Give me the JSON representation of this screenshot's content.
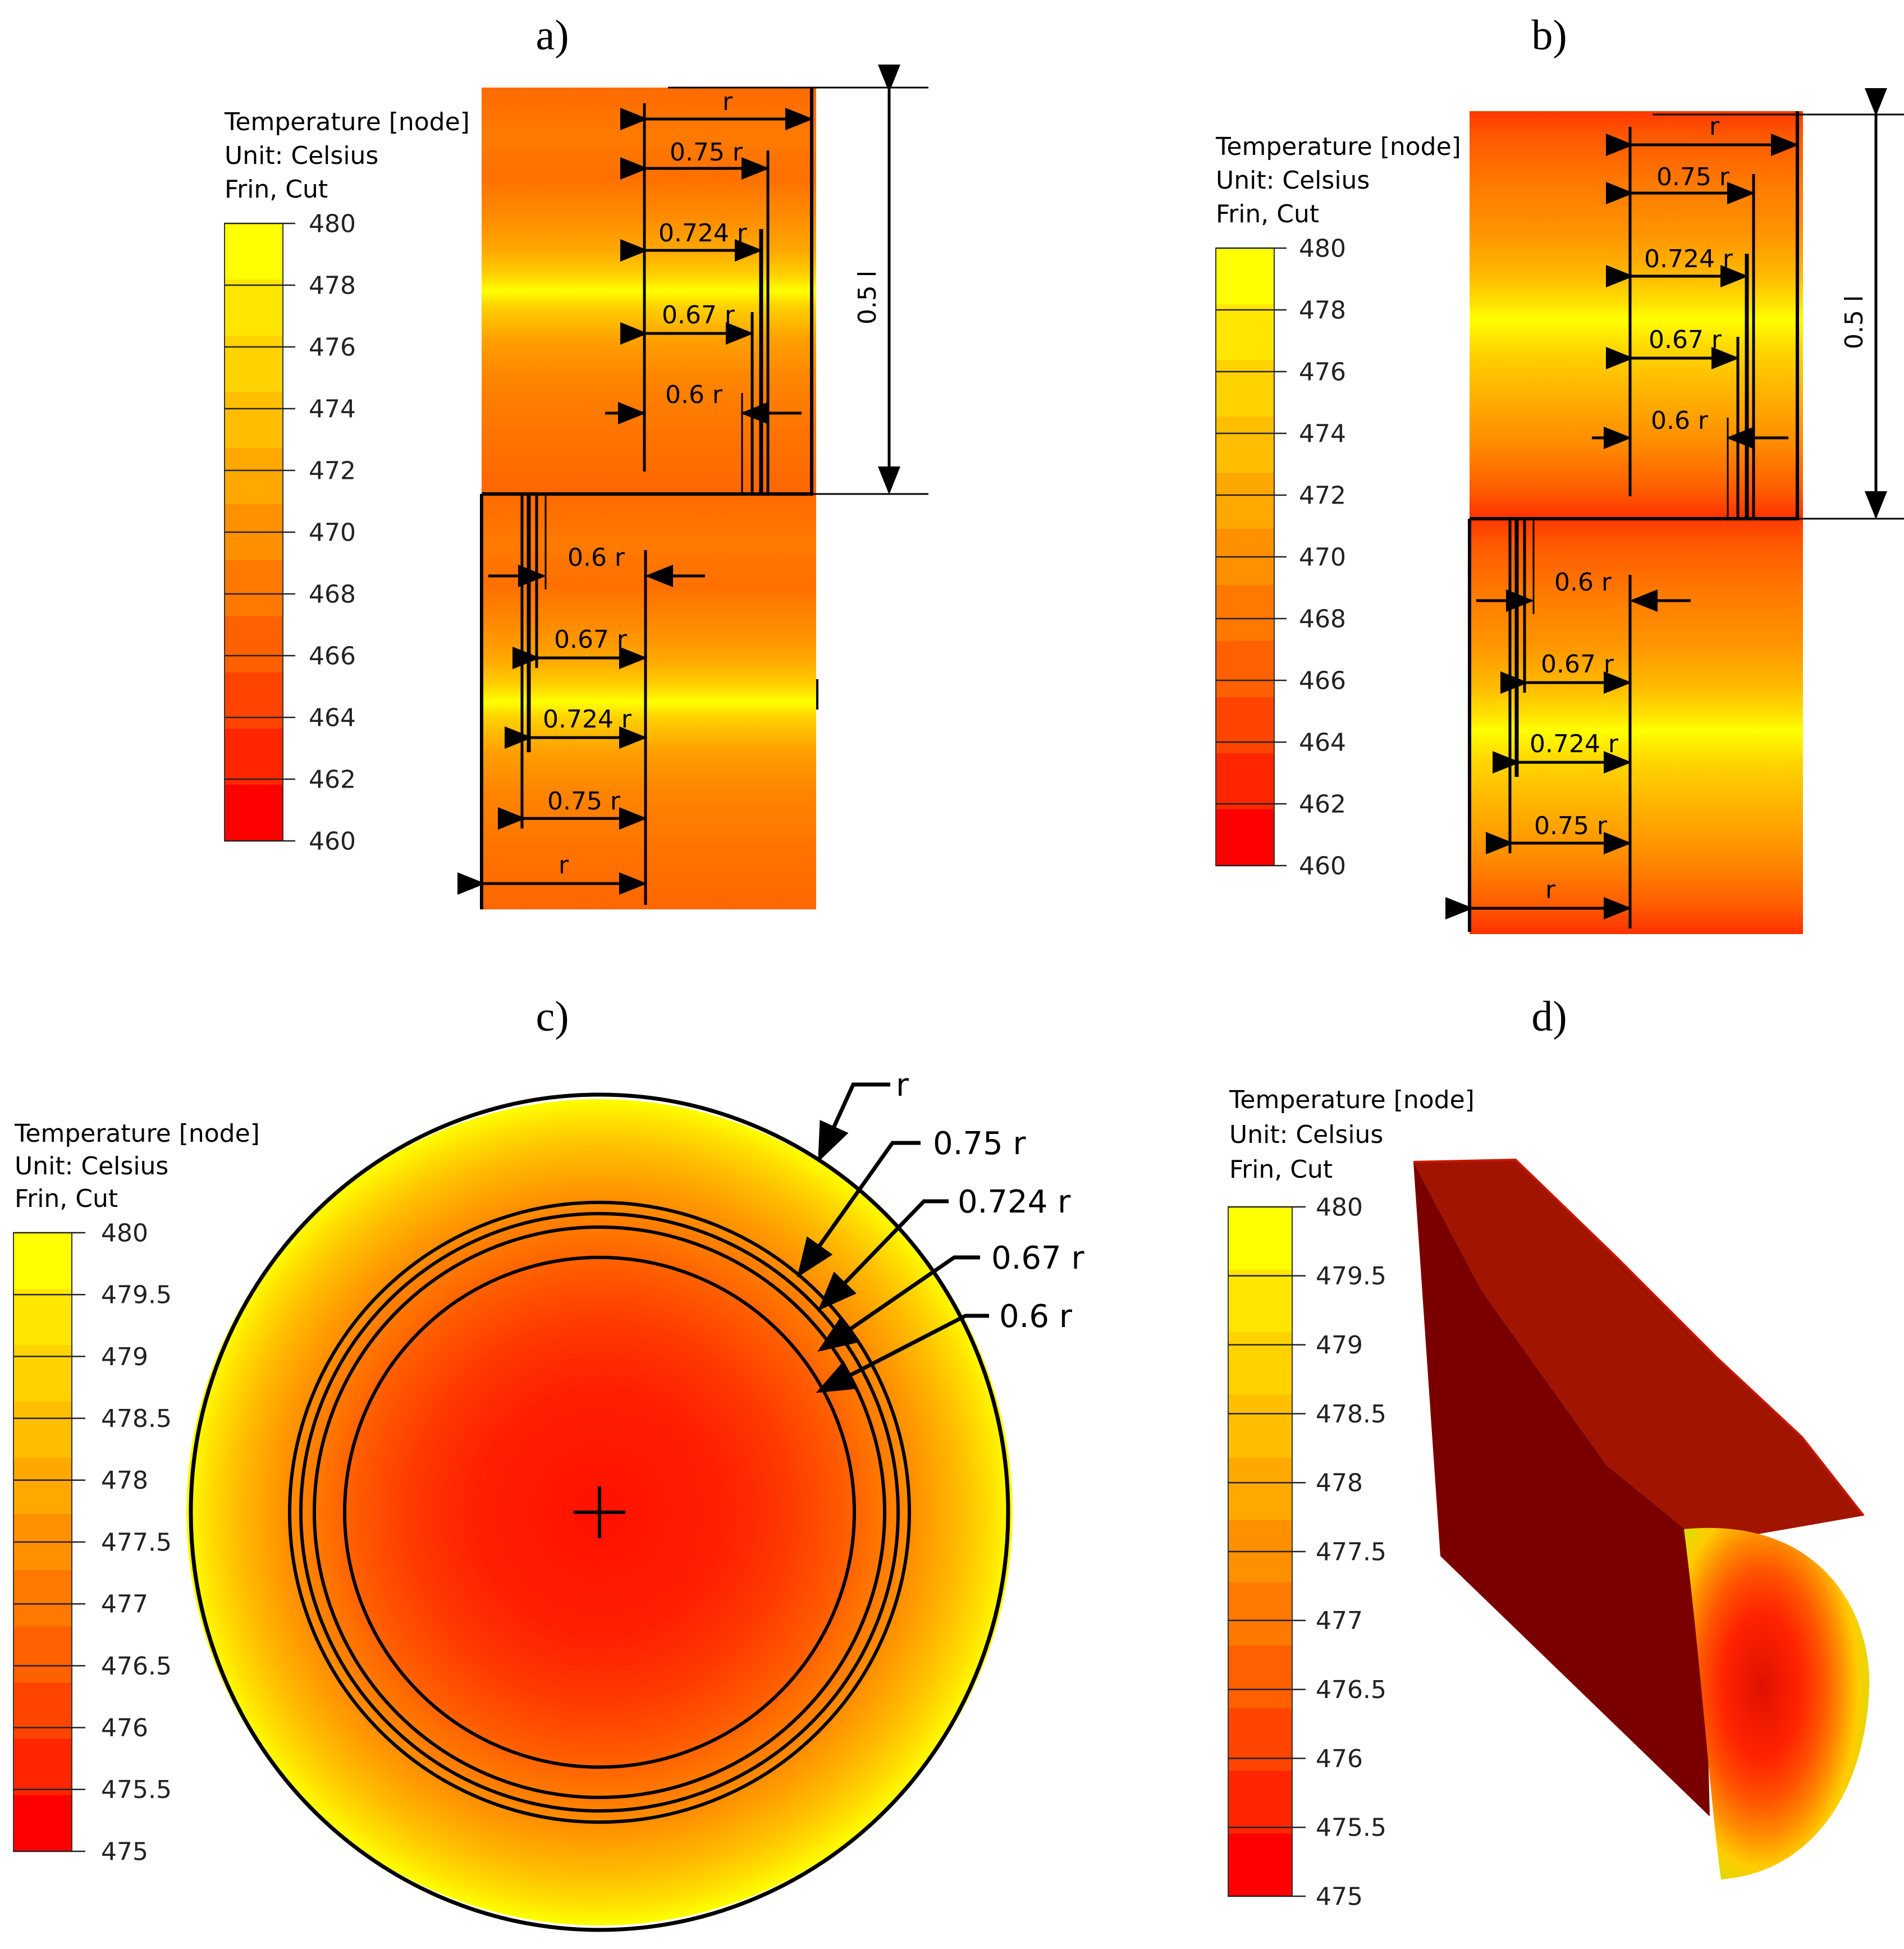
{
  "panels": {
    "a": {
      "label": "a)",
      "legend": {
        "line1": "Temperature [node]",
        "line2": "Unit: Celsius",
        "line3": "Frin, Cut",
        "ticks": [
          "480",
          "478",
          "476",
          "474",
          "472",
          "470",
          "468",
          "466",
          "464",
          "462",
          "460"
        ],
        "colors": [
          "#ffff00",
          "#ffe600",
          "#ffd200",
          "#ffbe00",
          "#ffa800",
          "#ff9000",
          "#ff7800",
          "#ff6000",
          "#ff4400",
          "#ff2600",
          "#ff0000"
        ]
      },
      "dims": {
        "r": "r",
        "r075": "0.75 r",
        "r0724": "0.724 r",
        "r067": "0.67 r",
        "r06": "0.6 r",
        "half_length": "0.5 l",
        "b_r06": "0.6 r",
        "b_r067": "0.67 r",
        "b_r0724": "0.724 r",
        "b_r075": "0.75 r",
        "b_r": "r"
      }
    },
    "b": {
      "label": "b)",
      "legend": {
        "line1": "Temperature [node]",
        "line2": "Unit: Celsius",
        "line3": "Frin, Cut",
        "ticks": [
          "480",
          "478",
          "476",
          "474",
          "472",
          "470",
          "468",
          "466",
          "464",
          "462",
          "460"
        ],
        "colors": [
          "#ffff00",
          "#ffe600",
          "#ffd200",
          "#ffbe00",
          "#ffa800",
          "#ff9000",
          "#ff7800",
          "#ff6000",
          "#ff4400",
          "#ff2600",
          "#ff0000"
        ]
      },
      "dims": {
        "r": "r",
        "r075": "0.75 r",
        "r0724": "0.724 r",
        "r067": "0.67 r",
        "r06": "0.6 r",
        "half_length": "0.5 l",
        "b_r06": "0.6 r",
        "b_r067": "0.67 r",
        "b_r0724": "0.724 r",
        "b_r075": "0.75 r",
        "b_r": "r"
      }
    },
    "c": {
      "label": "c)",
      "legend": {
        "line1": "Temperature [node]",
        "line2": "Unit: Celsius",
        "line3": "Frin, Cut",
        "ticks": [
          "480",
          "479.5",
          "479",
          "478.5",
          "478",
          "477.5",
          "477",
          "476.5",
          "476",
          "475.5",
          "475"
        ],
        "colors": [
          "#ffff00",
          "#ffe600",
          "#ffd200",
          "#ffbe00",
          "#ffa800",
          "#ff9000",
          "#ff7800",
          "#ff6000",
          "#ff4400",
          "#ff2600",
          "#ff0000"
        ]
      },
      "callouts": {
        "r": "r",
        "r075": "0.75 r",
        "r0724": "0.724 r",
        "r067": "0.67 r",
        "r06": "0.6 r"
      }
    },
    "d": {
      "label": "d)",
      "legend": {
        "line1": "Temperature [node]",
        "line2": "Unit: Celsius",
        "line3": "Frin, Cut",
        "ticks": [
          "480",
          "479.5",
          "479",
          "478.5",
          "478",
          "477.5",
          "477",
          "476.5",
          "476",
          "475.5",
          "475"
        ],
        "colors": [
          "#ffff00",
          "#ffe600",
          "#ffd200",
          "#ffbe00",
          "#ffa800",
          "#ff9000",
          "#ff7800",
          "#ff6000",
          "#ff4400",
          "#ff2600",
          "#ff0000"
        ]
      }
    }
  }
}
